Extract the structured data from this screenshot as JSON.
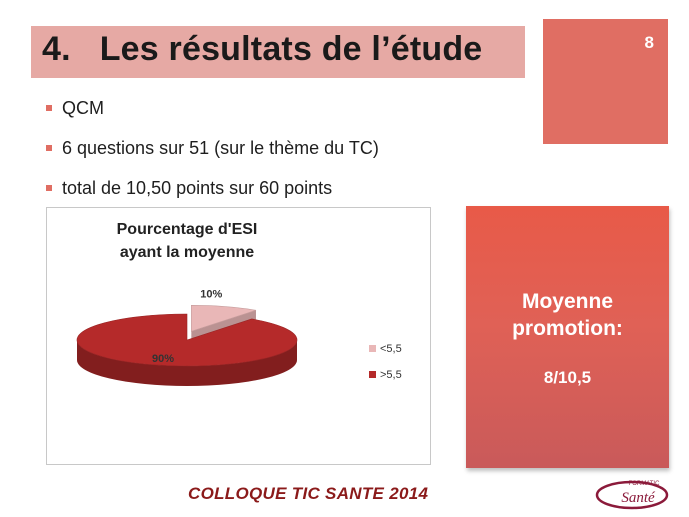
{
  "slide": {
    "number": "8",
    "title": "4.   Les résultats de l’étude",
    "bullets": [
      "QCM",
      "6 questions sur 51 (sur le thème du TC)",
      "total de 10,50 points sur 60 points"
    ],
    "promo_label_line1": "Moyenne",
    "promo_label_line2": "promotion:",
    "promo_value": "8/10,5",
    "footer": "COLLOQUE TIC SANTE 2014",
    "logo_text_top": "FORMATIC",
    "logo_text_main": "Santé"
  },
  "chart_data": {
    "type": "pie",
    "title": "Pourcentage d'ESI ayant la moyenne",
    "title_lines": [
      "Pourcentage d'ESI",
      "ayant la moyenne"
    ],
    "categories": [
      "<5,5",
      ">5,5"
    ],
    "values": [
      10,
      90
    ],
    "data_labels": [
      "10%",
      "90%"
    ],
    "colors": [
      "#e9b7b7",
      "#b52a2a"
    ],
    "legend_position": "right",
    "3d": true,
    "exploded_slice": "<5,5"
  },
  "colors": {
    "accent": "#e06e63",
    "title_bar": "#e6a9a4",
    "footer_text": "#8b1a1a"
  }
}
